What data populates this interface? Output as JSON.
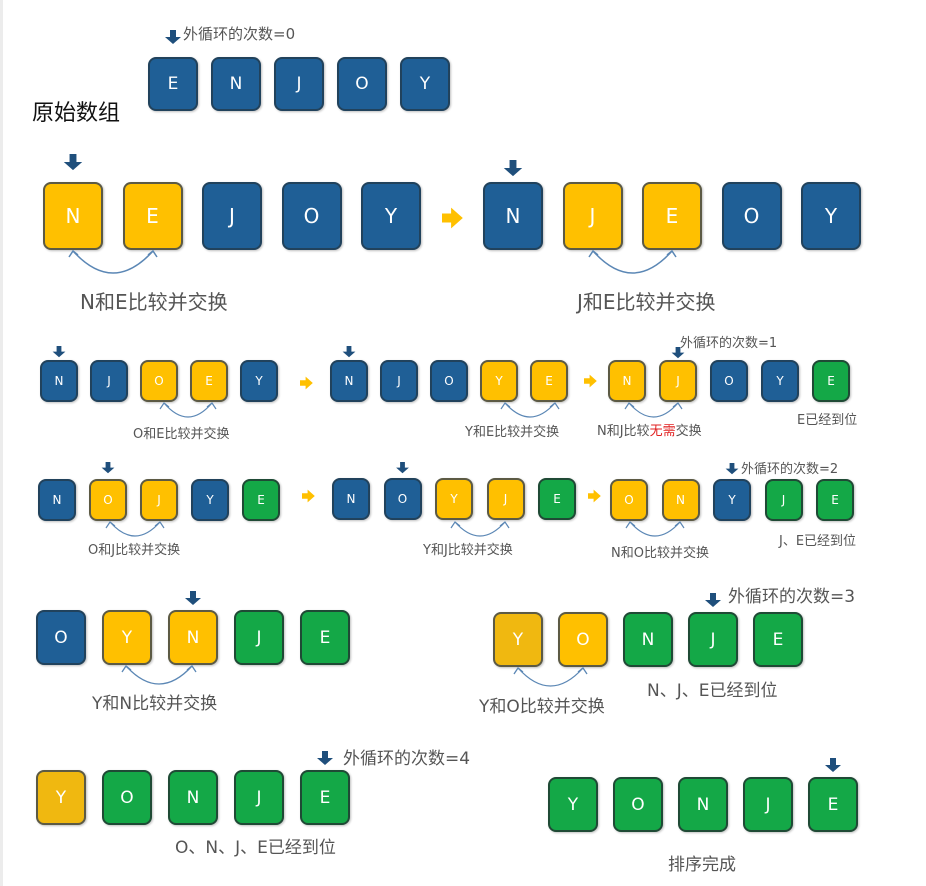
{
  "title": "原始数组",
  "rows": [
    {
      "letters": [
        "E",
        "N",
        "J",
        "O",
        "Y"
      ],
      "colors": [
        "blue",
        "blue",
        "blue",
        "blue",
        "blue"
      ]
    },
    {
      "letters": [
        "N",
        "E",
        "J",
        "O",
        "Y"
      ],
      "colors": [
        "yellow",
        "yellow",
        "blue",
        "blue",
        "blue"
      ]
    },
    {
      "letters": [
        "N",
        "J",
        "E",
        "O",
        "Y"
      ],
      "colors": [
        "blue",
        "yellow",
        "yellow",
        "blue",
        "blue"
      ]
    },
    {
      "letters": [
        "N",
        "J",
        "O",
        "E",
        "Y"
      ],
      "colors": [
        "blue",
        "blue",
        "yellow",
        "yellow",
        "blue"
      ]
    },
    {
      "letters": [
        "N",
        "J",
        "O",
        "Y",
        "E"
      ],
      "colors": [
        "blue",
        "blue",
        "blue",
        "yellow",
        "yellow"
      ]
    },
    {
      "letters": [
        "N",
        "J",
        "O",
        "Y",
        "E"
      ],
      "colors": [
        "yellow",
        "yellow",
        "blue",
        "blue",
        "green"
      ]
    },
    {
      "letters": [
        "N",
        "O",
        "J",
        "Y",
        "E"
      ],
      "colors": [
        "blue",
        "yellow",
        "yellow",
        "blue",
        "green"
      ]
    },
    {
      "letters": [
        "N",
        "O",
        "Y",
        "J",
        "E"
      ],
      "colors": [
        "blue",
        "blue",
        "yellow",
        "yellow",
        "green"
      ]
    },
    {
      "letters": [
        "O",
        "N",
        "Y",
        "J",
        "E"
      ],
      "colors": [
        "yellow",
        "yellow",
        "blue",
        "green",
        "green"
      ]
    },
    {
      "letters": [
        "O",
        "Y",
        "N",
        "J",
        "E"
      ],
      "colors": [
        "blue",
        "yellow",
        "yellow",
        "green",
        "green"
      ]
    },
    {
      "letters": [
        "Y",
        "O",
        "N",
        "J",
        "E"
      ],
      "colors": [
        "gold",
        "yellow",
        "green",
        "green",
        "green"
      ]
    },
    {
      "letters": [
        "Y",
        "O",
        "N",
        "J",
        "E"
      ],
      "colors": [
        "gold",
        "green",
        "green",
        "green",
        "green"
      ]
    },
    {
      "letters": [
        "Y",
        "O",
        "N",
        "J",
        "E"
      ],
      "colors": [
        "green",
        "green",
        "green",
        "green",
        "green"
      ]
    }
  ],
  "labels": {
    "loop0": "外循环的次数=0",
    "loop1": "外循环的次数=1",
    "loop2": "外循环的次数=2",
    "loop3": "外循环的次数=3",
    "loop4": "外循环的次数=4",
    "cmp_ne": "N和E比较并交换",
    "cmp_je": "J和E比较并交换",
    "cmp_oe": "O和E比较并交换",
    "cmp_ye": "Y和E比较并交换",
    "cmp_nj_pre": "N和J比较",
    "cmp_nj_red": "无需",
    "cmp_nj_post": "交换",
    "placed_e": "E已经到位",
    "cmp_oj": "O和J比较并交换",
    "cmp_yj": "Y和J比较并交换",
    "cmp_no": "N和O比较并交换",
    "placed_je": "J、E已经到位",
    "cmp_yn": "Y和N比较并交换",
    "cmp_yo": "Y和O比较并交换",
    "placed_nje": "N、J、E已经到位",
    "placed_onje": "O、N、J、E已经到位",
    "done": "排序完成"
  },
  "colors": {
    "blue": "#1f5f96",
    "yellow": "#ffc000",
    "gold": "#f0b810",
    "green": "#14a847",
    "arrow": "#1f4f7c",
    "step_arrow": "#ffc000",
    "swap_curve": "#5b87b5",
    "no_swap_text": "#e02020"
  }
}
